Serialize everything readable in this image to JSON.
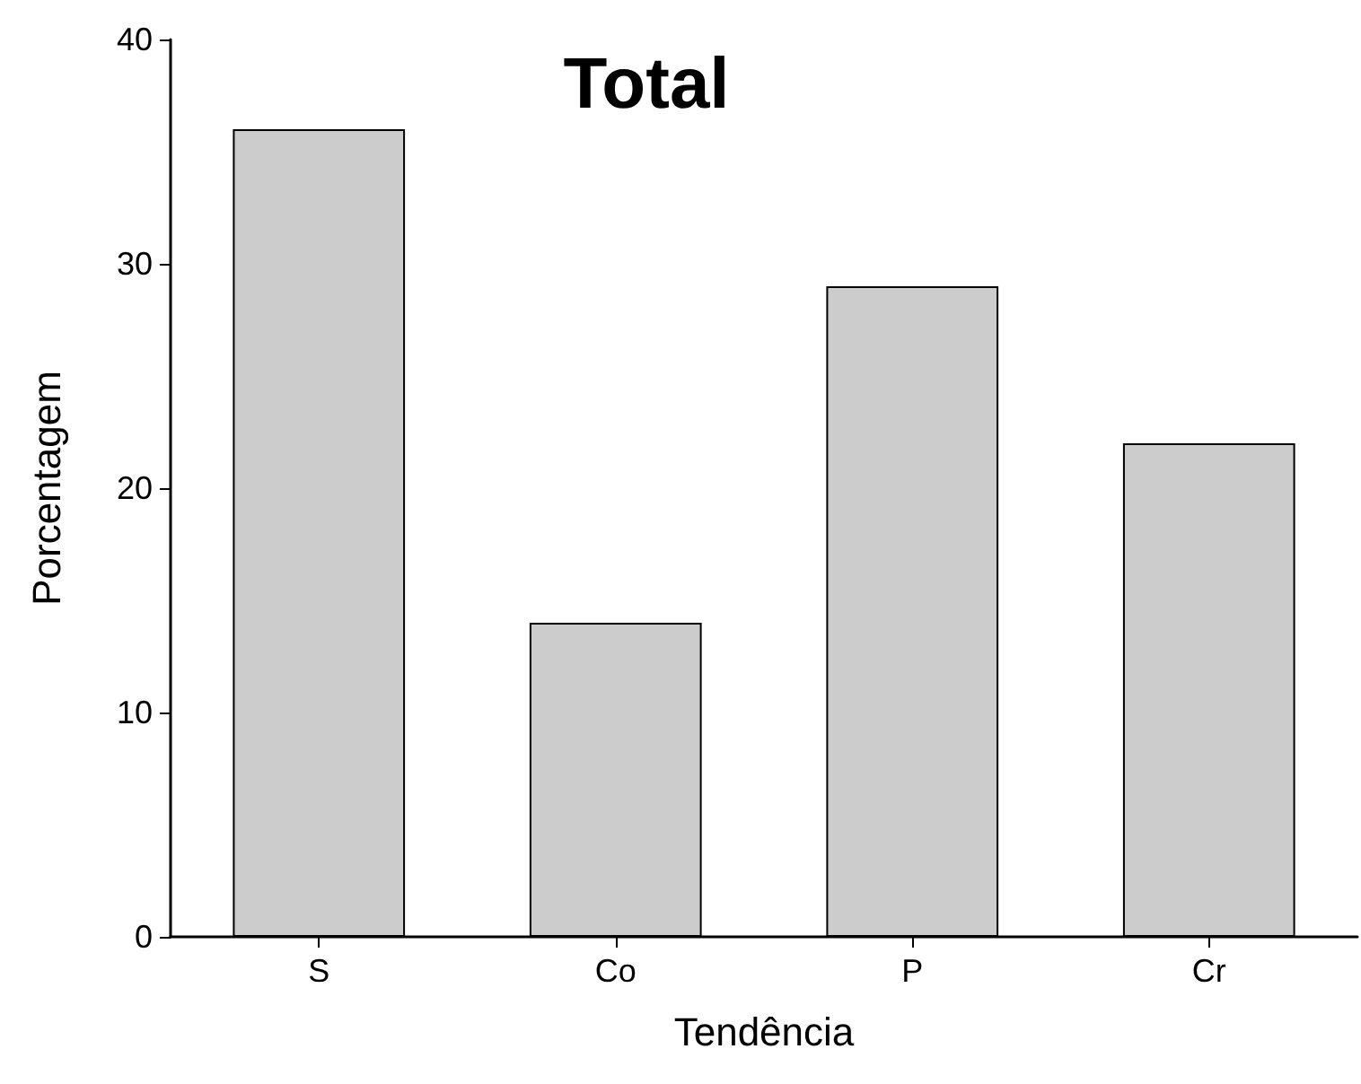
{
  "chart_data": {
    "type": "bar",
    "title": "Total",
    "xlabel": "Tendência",
    "ylabel": "Porcentagem",
    "categories": [
      "S",
      "Co",
      "P",
      "Cr"
    ],
    "values": [
      36,
      14,
      29,
      22
    ],
    "color": "#cccccc",
    "ylim": [
      0,
      40
    ],
    "yticks": [
      0,
      10,
      20,
      30,
      40
    ],
    "grid": false
  }
}
